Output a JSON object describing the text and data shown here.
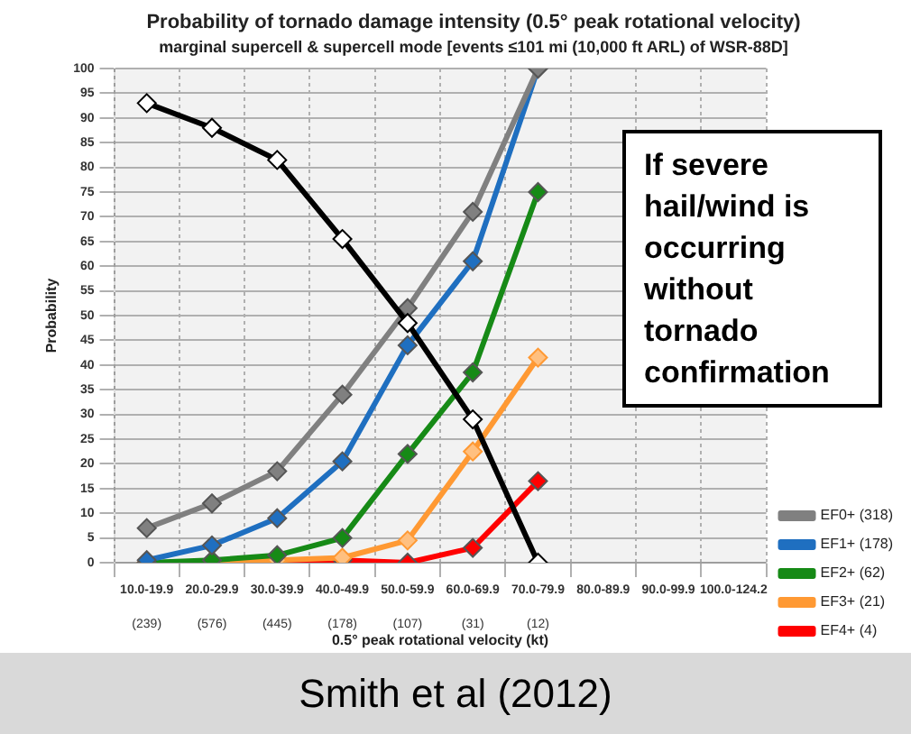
{
  "chart_data": {
    "type": "line",
    "title": "Probability of tornado damage intensity (0.5° peak rotational velocity)",
    "subtitle": "marginal supercell & supercell mode [events ≤101 mi (10,000 ft ARL) of WSR-88D]",
    "xlabel": "0.5° peak rotational velocity (kt)",
    "ylabel": "Probability",
    "categories": [
      "10.0-19.9",
      "20.0-29.9",
      "30.0-39.9",
      "40.0-49.9",
      "50.0-59.9",
      "60.0-69.9",
      "70.0-79.9",
      "80.0-89.9",
      "90.0-99.9",
      "100.0-124.2"
    ],
    "series": [
      {
        "color": "#000000",
        "values": [
          93,
          88,
          81.5,
          65.5,
          48.5,
          29,
          0,
          null,
          null,
          null
        ]
      },
      {
        "name": "EF0+ (318)",
        "color": "#808080",
        "values": [
          7,
          12,
          18.5,
          34,
          51.5,
          71,
          100,
          null,
          null,
          null
        ]
      },
      {
        "name": "EF1+ (178)",
        "color": "#1f6fc0",
        "values": [
          0.5,
          3.5,
          9,
          20.5,
          44,
          61,
          100,
          null,
          null,
          null
        ]
      },
      {
        "name": "EF2+ (62)",
        "color": "#168a16",
        "values": [
          0,
          0.5,
          1.5,
          5,
          22,
          38.5,
          75,
          null,
          null,
          null
        ]
      },
      {
        "name": "EF3+ (21)",
        "color": "#ff9933",
        "values": [
          0,
          0,
          0.5,
          1,
          4.5,
          22.5,
          41.5,
          null,
          null,
          null
        ]
      },
      {
        "name": "EF4+ (4)",
        "color": "#ff0000",
        "values": [
          0,
          0,
          0,
          0.5,
          0,
          3,
          16.5,
          null,
          null,
          null
        ]
      }
    ],
    "ylim": [
      0,
      100
    ],
    "yticks": [
      0,
      5,
      10,
      15,
      20,
      25,
      30,
      35,
      40,
      45,
      50,
      55,
      60,
      65,
      70,
      75,
      80,
      85,
      90,
      95,
      100
    ],
    "grid": true,
    "legend": "right",
    "marker": "diamond",
    "line_style": "solid",
    "annotations": [
      "(239)",
      "(576)",
      "(445)",
      "(178)",
      "(107)",
      "(31)",
      "(12)",
      "If severe hail/wind is occurring without tornado confirmation",
      "Smith et al (2012)"
    ]
  }
}
